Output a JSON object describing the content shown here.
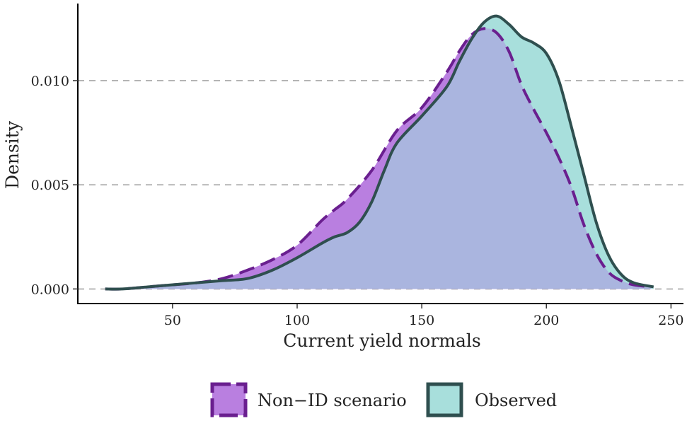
{
  "chart_data": {
    "type": "area",
    "xlabel": "Current yield normals",
    "ylabel": "Density",
    "xlim": [
      12,
      255
    ],
    "ylim": [
      -0.0007,
      0.0137
    ],
    "x_ticks": [
      {
        "value": 50,
        "label": "50"
      },
      {
        "value": 100,
        "label": "100"
      },
      {
        "value": 150,
        "label": "150"
      },
      {
        "value": 200,
        "label": "200"
      },
      {
        "value": 250,
        "label": "250"
      }
    ],
    "y_ticks": [
      {
        "value": 0.0,
        "label": "0.000"
      },
      {
        "value": 0.005,
        "label": "0.005"
      },
      {
        "value": 0.01,
        "label": "0.010"
      }
    ],
    "grid": "horizontal dashed",
    "legend_position": "bottom",
    "series": [
      {
        "name": "Non−ID scenario",
        "fill": "#b97fe0",
        "line": "#6a1f8f",
        "line_style": "dashed",
        "x": [
          23,
          30,
          40,
          50,
          60,
          70,
          80,
          90,
          100,
          110,
          115,
          120,
          130,
          140,
          150,
          160,
          165,
          170,
          175,
          180,
          185,
          190,
          195,
          200,
          205,
          210,
          215,
          220,
          225,
          230,
          235,
          242
        ],
        "y": [
          0.0,
          0.0,
          0.0001,
          0.0002,
          0.0003,
          0.0005,
          0.0009,
          0.0014,
          0.0021,
          0.0033,
          0.0038,
          0.0043,
          0.0057,
          0.0076,
          0.0087,
          0.0104,
          0.0114,
          0.0122,
          0.0125,
          0.0123,
          0.0114,
          0.0098,
          0.0086,
          0.0075,
          0.0063,
          0.0049,
          0.0031,
          0.0017,
          0.0008,
          0.0004,
          0.0002,
          0.0001
        ]
      },
      {
        "name": "Observed",
        "fill": "#a8dfdc",
        "line": "#2f4f4f",
        "line_style": "solid",
        "x": [
          23,
          30,
          40,
          50,
          60,
          70,
          80,
          90,
          100,
          110,
          115,
          120,
          125,
          130,
          135,
          140,
          150,
          160,
          165,
          170,
          175,
          180,
          185,
          190,
          195,
          200,
          205,
          210,
          215,
          220,
          225,
          230,
          235,
          243
        ],
        "y": [
          0.0,
          0.0,
          0.0001,
          0.0002,
          0.0003,
          0.0004,
          0.0005,
          0.0009,
          0.0015,
          0.0022,
          0.0025,
          0.0027,
          0.0032,
          0.0042,
          0.0057,
          0.007,
          0.0083,
          0.0097,
          0.0109,
          0.012,
          0.0128,
          0.0131,
          0.0127,
          0.0121,
          0.0118,
          0.0113,
          0.01,
          0.0078,
          0.0055,
          0.0032,
          0.0016,
          0.0007,
          0.0003,
          0.0001
        ]
      }
    ],
    "overlap_fill": "#aab5df"
  }
}
